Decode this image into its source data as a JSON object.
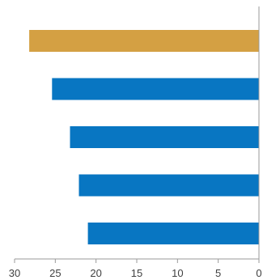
{
  "chart_data": {
    "type": "bar",
    "orientation": "horizontal",
    "x_axis": "reversed",
    "values": [
      28.2,
      25.4,
      23.2,
      22.1,
      21.0
    ],
    "bar_colors": [
      "#D4A043",
      "#0876C2",
      "#0876C2",
      "#0876C2",
      "#0876C2"
    ],
    "xlim": [
      0,
      30
    ],
    "xticks": [
      "30",
      "25",
      "20",
      "15",
      "10",
      "5",
      "0"
    ],
    "tick_values": [
      30,
      25,
      20,
      15,
      10,
      5,
      0
    ],
    "grid": false,
    "legend": "none"
  }
}
